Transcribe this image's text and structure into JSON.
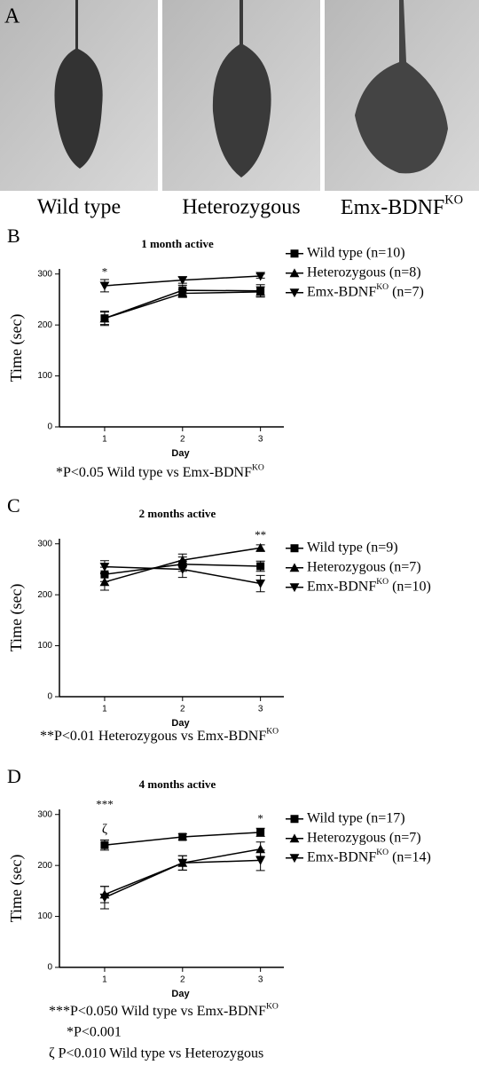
{
  "figure": {
    "panel": "A",
    "captions": [
      "Wild type",
      "Heterozygous",
      [
        "Emx-BDNF",
        "KO"
      ]
    ]
  },
  "chart_data": [
    {
      "type": "line",
      "panel": "B",
      "title": "1 month active",
      "x_label": "Day",
      "y_label": "Time (sec)",
      "x": [
        1,
        2,
        3
      ],
      "xlim": [
        0.42,
        3.3
      ],
      "xticks": [
        1,
        2,
        3
      ],
      "ylim": [
        0,
        310
      ],
      "yticks": [
        0,
        100,
        200,
        300
      ],
      "series": [
        {
          "name": "Wild type (n=10)",
          "color": "#000000",
          "marker": "square",
          "values": [
            213,
            268,
            267
          ],
          "errors": [
            14,
            10,
            12
          ]
        },
        {
          "name": "Heterozygous (n=8)",
          "color": "#000000",
          "marker": "triangle",
          "values": [
            213,
            262,
            265
          ],
          "errors": [
            12,
            8,
            10
          ]
        },
        {
          "name": [
            "Emx-BDNF",
            "KO",
            " (n=7)"
          ],
          "color": "#000000",
          "marker": "triangle-down",
          "values": [
            277,
            288,
            296
          ],
          "errors": [
            12,
            6,
            4
          ]
        }
      ],
      "annotations": [
        {
          "x": 1,
          "y": 302,
          "text": "*"
        }
      ],
      "notes": [
        [
          "*P<0.05 Wild type vs Emx-BDNF",
          "KO"
        ]
      ]
    },
    {
      "type": "line",
      "panel": "C",
      "title": "2 months active",
      "x_label": "Day",
      "y_label": "Time (sec)",
      "x": [
        1,
        2,
        3
      ],
      "xlim": [
        0.42,
        3.3
      ],
      "xticks": [
        1,
        2,
        3
      ],
      "ylim": [
        0,
        310
      ],
      "yticks": [
        0,
        100,
        200,
        300
      ],
      "series": [
        {
          "name": "Wild type (n=9)",
          "color": "#000000",
          "marker": "square",
          "values": [
            240,
            260,
            256
          ],
          "errors": [
            14,
            14,
            10
          ]
        },
        {
          "name": "Heterozygous (n=7)",
          "color": "#000000",
          "marker": "triangle",
          "values": [
            225,
            268,
            292
          ],
          "errors": [
            16,
            12,
            6
          ]
        },
        {
          "name": [
            "Emx-BDNF",
            "KO",
            " (n=10)"
          ],
          "color": "#000000",
          "marker": "triangle-down",
          "values": [
            255,
            250,
            222
          ],
          "errors": [
            12,
            16,
            16
          ]
        }
      ],
      "annotations": [
        {
          "x": 3,
          "y": 315,
          "text": "**"
        }
      ],
      "notes": [
        [
          "**P<0.01 Heterozygous vs Emx-BDNF",
          "KO"
        ]
      ]
    },
    {
      "type": "line",
      "panel": "D",
      "title": "4 months active",
      "x_label": "Day",
      "y_label": "Time (sec)",
      "x": [
        1,
        2,
        3
      ],
      "xlim": [
        0.42,
        3.3
      ],
      "xticks": [
        1,
        2,
        3
      ],
      "ylim": [
        0,
        310
      ],
      "yticks": [
        0,
        100,
        200,
        300
      ],
      "series": [
        {
          "name": "Wild type (n=17)",
          "color": "#000000",
          "marker": "square",
          "values": [
            240,
            256,
            265
          ],
          "errors": [
            10,
            6,
            8
          ]
        },
        {
          "name": "Heterozygous (n=7)",
          "color": "#000000",
          "marker": "triangle",
          "values": [
            143,
            205,
            232
          ],
          "errors": [
            16,
            14,
            14
          ]
        },
        {
          "name": [
            "Emx-BDNF",
            "KO",
            " (n=14)"
          ],
          "color": "#000000",
          "marker": "triangle-down",
          "values": [
            137,
            205,
            210
          ],
          "errors": [
            22,
            14,
            20
          ]
        }
      ],
      "annotations": [
        {
          "x": 1,
          "y": 318,
          "text": "***"
        },
        {
          "x": 1,
          "y": 270,
          "text": "ζ"
        },
        {
          "x": 3,
          "y": 290,
          "text": "*"
        }
      ],
      "notes": [
        [
          "***P<0.050 Wild type vs Emx-BDNF",
          "KO"
        ],
        "*P<0.001",
        "ζ P<0.010 Wild type vs Heterozygous"
      ]
    }
  ]
}
